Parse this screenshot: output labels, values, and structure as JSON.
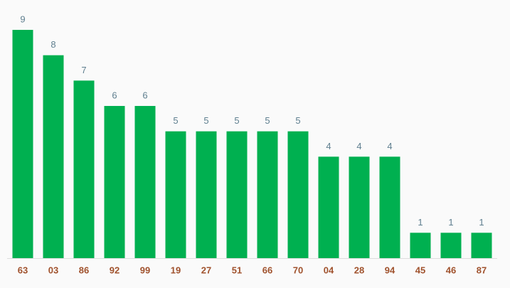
{
  "chart_data": {
    "type": "bar",
    "categories": [
      "63",
      "03",
      "86",
      "92",
      "99",
      "19",
      "27",
      "51",
      "66",
      "70",
      "04",
      "28",
      "94",
      "45",
      "46",
      "87"
    ],
    "values": [
      9,
      8,
      7,
      6,
      6,
      5,
      5,
      5,
      5,
      5,
      4,
      4,
      4,
      1,
      1,
      1
    ],
    "color": "#00b050"
  }
}
